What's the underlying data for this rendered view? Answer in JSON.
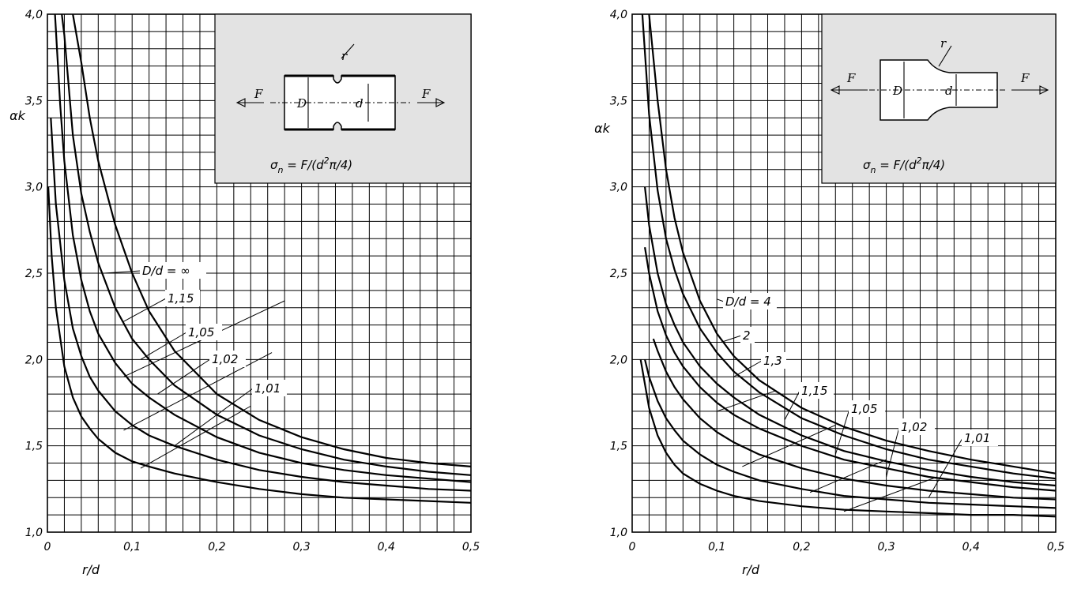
{
  "chart_data": [
    {
      "type": "line",
      "xlabel": "r/d",
      "ylabel": "αk",
      "xlim": [
        0,
        0.5
      ],
      "ylim": [
        1.0,
        4.0
      ],
      "x_ticks": [
        "0",
        "0,1",
        "0,2",
        "0,3",
        "0,4",
        "0,5"
      ],
      "y_ticks": [
        "1,0",
        "1,5",
        "2,0",
        "2,5",
        "3,0",
        "3,5",
        "4,0"
      ],
      "grid": true,
      "inset": {
        "labels": {
          "force": "F",
          "outer_diameter": "D",
          "inner_diameter": "d",
          "radius": "r"
        },
        "formula": {
          "sigma": "σ",
          "sub": "n",
          "eq": " = F/(d",
          "sup": "2",
          "tail": "π/4)"
        }
      },
      "series": [
        {
          "name": "D/d = ∞",
          "x": [
            0.03,
            0.04,
            0.05,
            0.06,
            0.08,
            0.1,
            0.12,
            0.15,
            0.2,
            0.25,
            0.3,
            0.35,
            0.4,
            0.45,
            0.5
          ],
          "y": [
            4.0,
            3.72,
            3.4,
            3.15,
            2.78,
            2.5,
            2.28,
            2.05,
            1.8,
            1.65,
            1.55,
            1.48,
            1.43,
            1.4,
            1.38
          ]
        },
        {
          "name": "1,15",
          "x": [
            0.017,
            0.02,
            0.03,
            0.04,
            0.05,
            0.06,
            0.08,
            0.1,
            0.12,
            0.15,
            0.2,
            0.25,
            0.3,
            0.35,
            0.4,
            0.45,
            0.5
          ],
          "y": [
            4.0,
            3.88,
            3.3,
            2.96,
            2.74,
            2.56,
            2.3,
            2.12,
            2.0,
            1.85,
            1.68,
            1.56,
            1.48,
            1.42,
            1.38,
            1.35,
            1.33
          ]
        },
        {
          "name": "1,05",
          "x": [
            0.009,
            0.015,
            0.02,
            0.03,
            0.04,
            0.05,
            0.06,
            0.08,
            0.1,
            0.12,
            0.15,
            0.2,
            0.25,
            0.3,
            0.35,
            0.4,
            0.45,
            0.5
          ],
          "y": [
            4.0,
            3.48,
            3.15,
            2.72,
            2.46,
            2.28,
            2.15,
            1.98,
            1.86,
            1.78,
            1.68,
            1.55,
            1.46,
            1.4,
            1.36,
            1.33,
            1.31,
            1.29
          ]
        },
        {
          "name": "1,02",
          "x": [
            0.004,
            0.01,
            0.02,
            0.03,
            0.04,
            0.05,
            0.06,
            0.08,
            0.1,
            0.12,
            0.15,
            0.2,
            0.25,
            0.3,
            0.35,
            0.4,
            0.45,
            0.5
          ],
          "y": [
            3.4,
            2.9,
            2.46,
            2.18,
            2.02,
            1.9,
            1.82,
            1.7,
            1.62,
            1.56,
            1.5,
            1.42,
            1.36,
            1.32,
            1.29,
            1.27,
            1.25,
            1.24
          ]
        },
        {
          "name": "1,01",
          "x": [
            0.001,
            0.005,
            0.01,
            0.02,
            0.03,
            0.04,
            0.05,
            0.06,
            0.08,
            0.1,
            0.12,
            0.15,
            0.2,
            0.25,
            0.3,
            0.35,
            0.4,
            0.45,
            0.5
          ],
          "y": [
            3.0,
            2.6,
            2.3,
            1.96,
            1.78,
            1.67,
            1.6,
            1.54,
            1.46,
            1.41,
            1.38,
            1.34,
            1.29,
            1.25,
            1.22,
            1.2,
            1.19,
            1.18,
            1.17
          ]
        }
      ]
    },
    {
      "type": "line",
      "xlabel": "r/d",
      "ylabel": "αk",
      "xlim": [
        0,
        0.5
      ],
      "ylim": [
        1.0,
        4.0
      ],
      "x_ticks": [
        "0",
        "0,1",
        "0,2",
        "0,3",
        "0,4",
        "0,5"
      ],
      "y_ticks": [
        "1,0",
        "1,5",
        "2,0",
        "2,5",
        "3,0",
        "3,5",
        "4,0"
      ],
      "grid": true,
      "inset": {
        "labels": {
          "force": "F",
          "outer_diameter": "D",
          "inner_diameter": "d",
          "radius": "r"
        },
        "formula": {
          "sigma": "σ",
          "sub": "n",
          "eq": " = F/(d",
          "sup": "2",
          "tail": "π/4)"
        }
      },
      "series": [
        {
          "name": "D/d = 4",
          "x": [
            0.02,
            0.03,
            0.04,
            0.05,
            0.06,
            0.08,
            0.1,
            0.12,
            0.15,
            0.2,
            0.25,
            0.3,
            0.35,
            0.4,
            0.45,
            0.5
          ],
          "y": [
            4.0,
            3.5,
            3.1,
            2.82,
            2.62,
            2.34,
            2.15,
            2.02,
            1.88,
            1.72,
            1.61,
            1.53,
            1.47,
            1.42,
            1.38,
            1.34
          ]
        },
        {
          "name": "2",
          "x": [
            0.012,
            0.02,
            0.03,
            0.04,
            0.05,
            0.06,
            0.08,
            0.1,
            0.12,
            0.15,
            0.2,
            0.25,
            0.3,
            0.35,
            0.4,
            0.45,
            0.5
          ],
          "y": [
            4.0,
            3.42,
            2.98,
            2.7,
            2.52,
            2.38,
            2.18,
            2.04,
            1.93,
            1.81,
            1.66,
            1.56,
            1.48,
            1.42,
            1.38,
            1.34,
            1.31
          ]
        },
        {
          "name": "1,3",
          "x": [
            0.015,
            0.02,
            0.03,
            0.04,
            0.05,
            0.06,
            0.08,
            0.1,
            0.12,
            0.15,
            0.2,
            0.25,
            0.3,
            0.35,
            0.4,
            0.45,
            0.5
          ],
          "y": [
            3.0,
            2.78,
            2.5,
            2.32,
            2.2,
            2.1,
            1.96,
            1.86,
            1.78,
            1.68,
            1.56,
            1.47,
            1.41,
            1.36,
            1.32,
            1.29,
            1.27
          ]
        },
        {
          "name": "1,15",
          "x": [
            0.015,
            0.02,
            0.03,
            0.04,
            0.05,
            0.06,
            0.08,
            0.1,
            0.12,
            0.15,
            0.2,
            0.25,
            0.3,
            0.35,
            0.4,
            0.45,
            0.5
          ],
          "y": [
            2.65,
            2.5,
            2.28,
            2.14,
            2.04,
            1.96,
            1.84,
            1.75,
            1.68,
            1.6,
            1.5,
            1.42,
            1.37,
            1.32,
            1.29,
            1.26,
            1.24
          ]
        },
        {
          "name": "1,05",
          "x": [
            0.025,
            0.03,
            0.04,
            0.05,
            0.06,
            0.08,
            0.1,
            0.12,
            0.15,
            0.2,
            0.25,
            0.3,
            0.35,
            0.4,
            0.45,
            0.5
          ],
          "y": [
            2.12,
            2.05,
            1.93,
            1.84,
            1.77,
            1.66,
            1.58,
            1.52,
            1.45,
            1.37,
            1.31,
            1.27,
            1.24,
            1.22,
            1.2,
            1.19
          ]
        },
        {
          "name": "1,02",
          "x": [
            0.015,
            0.02,
            0.03,
            0.04,
            0.05,
            0.06,
            0.08,
            0.1,
            0.12,
            0.15,
            0.2,
            0.25,
            0.3,
            0.35,
            0.4,
            0.45,
            0.5
          ],
          "y": [
            2.0,
            1.9,
            1.76,
            1.66,
            1.59,
            1.53,
            1.45,
            1.39,
            1.35,
            1.3,
            1.25,
            1.21,
            1.19,
            1.17,
            1.16,
            1.15,
            1.14
          ]
        },
        {
          "name": "1,01",
          "x": [
            0.01,
            0.02,
            0.03,
            0.04,
            0.05,
            0.06,
            0.08,
            0.1,
            0.12,
            0.15,
            0.2,
            0.25,
            0.3,
            0.35,
            0.4,
            0.45,
            0.5
          ],
          "y": [
            2.0,
            1.72,
            1.56,
            1.46,
            1.39,
            1.34,
            1.28,
            1.24,
            1.21,
            1.18,
            1.15,
            1.13,
            1.12,
            1.11,
            1.1,
            1.1,
            1.09
          ]
        }
      ]
    }
  ]
}
